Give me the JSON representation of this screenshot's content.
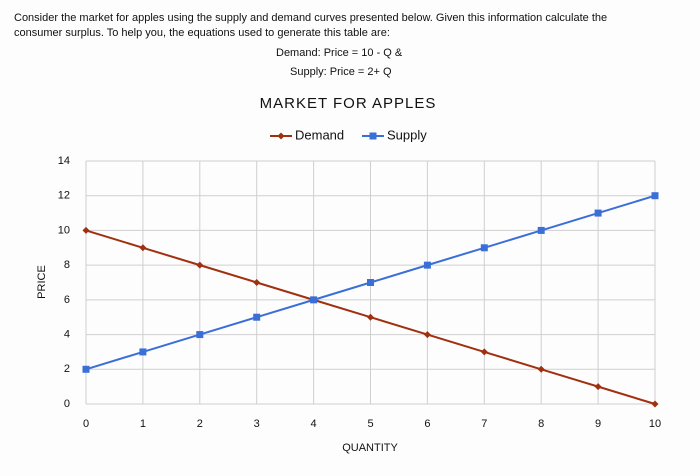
{
  "question": {
    "lines": [
      "Consider the market for apples using the supply and demand curves presented below. Given this information calculate the",
      "consumer surplus. To help you, the equations used to generate this table are:",
      "Demand: Price = 10 - Q  &",
      "Supply: Price = 2+ Q"
    ]
  },
  "chart_data": {
    "type": "line",
    "title": "MARKET FOR APPLES",
    "x_label": "QUANTITY",
    "y_label": "PRICE",
    "x": [
      0,
      1,
      2,
      3,
      4,
      5,
      6,
      7,
      8,
      9,
      10
    ],
    "series": [
      {
        "name": "Demand",
        "color": "#a0300f",
        "marker": "diamond",
        "values": [
          10,
          9,
          8,
          7,
          6,
          5,
          4,
          3,
          2,
          1,
          0
        ]
      },
      {
        "name": "Supply",
        "color": "#3a6fd8",
        "marker": "square",
        "values": [
          2,
          3,
          4,
          5,
          6,
          7,
          8,
          9,
          10,
          11,
          12
        ]
      }
    ],
    "xlim": [
      0,
      10
    ],
    "xticks": [
      0,
      1,
      2,
      3,
      4,
      5,
      6,
      7,
      8,
      9,
      10
    ],
    "ylim": [
      0,
      14
    ],
    "yticks": [
      0,
      2,
      4,
      6,
      8,
      10,
      12,
      14
    ],
    "grid": true,
    "legend": "top"
  }
}
